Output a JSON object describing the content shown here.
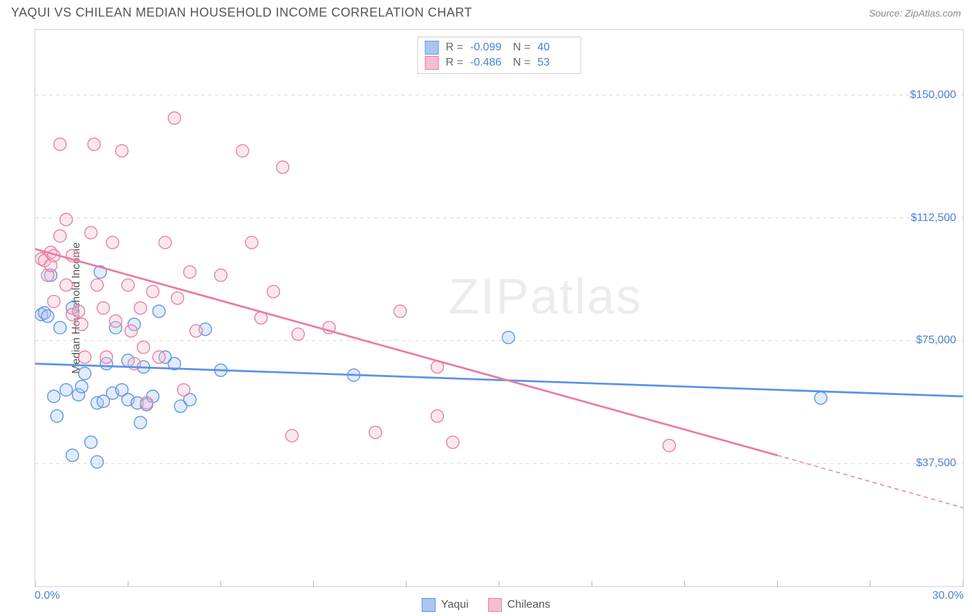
{
  "header": {
    "title": "YAQUI VS CHILEAN MEDIAN HOUSEHOLD INCOME CORRELATION CHART",
    "source": "Source: ZipAtlas.com"
  },
  "chart": {
    "type": "scatter",
    "y_label": "Median Household Income",
    "x_range": [
      0,
      30
    ],
    "y_range": [
      0,
      170000
    ],
    "x_start_label": "0.0%",
    "x_end_label": "30.0%",
    "x_ticks": [
      0,
      3,
      6,
      9,
      12,
      15,
      18,
      21,
      24,
      27,
      30
    ],
    "y_ticks": [
      {
        "value": 37500,
        "label": "$37,500"
      },
      {
        "value": 75000,
        "label": "$75,000"
      },
      {
        "value": 112500,
        "label": "$112,500"
      },
      {
        "value": 150000,
        "label": "$150,000"
      }
    ],
    "grid_color": "#d8d8d8",
    "background_color": "#ffffff",
    "marker_radius": 9,
    "marker_stroke_width": 1.4,
    "marker_fill_opacity": 0.35,
    "trend_line_width": 2.8,
    "watermark_text": "ZIPatlas",
    "series": [
      {
        "name": "Yaqui",
        "color_stroke": "#5b93e6",
        "color_fill": "#a8c6f0",
        "r_value": "-0.099",
        "n_value": "40",
        "trend": {
          "x1": 0,
          "y1": 68000,
          "x2": 30,
          "y2": 58000
        },
        "points": [
          [
            0.2,
            83000
          ],
          [
            0.3,
            83500
          ],
          [
            0.4,
            82500
          ],
          [
            0.5,
            95000
          ],
          [
            0.6,
            58000
          ],
          [
            0.7,
            52000
          ],
          [
            0.8,
            79000
          ],
          [
            1.0,
            60000
          ],
          [
            1.2,
            85000
          ],
          [
            1.2,
            40000
          ],
          [
            1.4,
            58500
          ],
          [
            1.5,
            61000
          ],
          [
            1.6,
            65000
          ],
          [
            1.8,
            44000
          ],
          [
            2.0,
            56000
          ],
          [
            2.0,
            38000
          ],
          [
            2.1,
            96000
          ],
          [
            2.2,
            56500
          ],
          [
            2.3,
            68000
          ],
          [
            2.5,
            59000
          ],
          [
            2.6,
            79000
          ],
          [
            2.8,
            60000
          ],
          [
            3.0,
            57000
          ],
          [
            3.2,
            80000
          ],
          [
            3.3,
            56000
          ],
          [
            3.4,
            50000
          ],
          [
            3.5,
            67000
          ],
          [
            3.6,
            55500
          ],
          [
            3.8,
            58000
          ],
          [
            4.0,
            84000
          ],
          [
            4.2,
            70000
          ],
          [
            4.5,
            68000
          ],
          [
            4.7,
            55000
          ],
          [
            5.0,
            57000
          ],
          [
            5.5,
            78500
          ],
          [
            6.0,
            66000
          ],
          [
            10.3,
            64500
          ],
          [
            15.3,
            76000
          ],
          [
            25.4,
            57500
          ],
          [
            3.0,
            69000
          ]
        ]
      },
      {
        "name": "Chileans",
        "color_stroke": "#e87da1",
        "color_fill": "#f4bdd0",
        "r_value": "-0.486",
        "n_value": "53",
        "trend": {
          "x1": 0,
          "y1": 103000,
          "x2": 24,
          "y2": 40000
        },
        "trend_dashed": {
          "x1": 24,
          "y1": 40000,
          "x2": 30,
          "y2": 24000
        },
        "points": [
          [
            0.2,
            100000
          ],
          [
            0.3,
            99500
          ],
          [
            0.4,
            95000
          ],
          [
            0.5,
            98000
          ],
          [
            0.5,
            102000
          ],
          [
            0.6,
            101000
          ],
          [
            0.6,
            87000
          ],
          [
            0.8,
            135000
          ],
          [
            0.8,
            107000
          ],
          [
            1.0,
            112000
          ],
          [
            1.0,
            92000
          ],
          [
            1.2,
            101000
          ],
          [
            1.2,
            83000
          ],
          [
            1.4,
            84000
          ],
          [
            1.5,
            80000
          ],
          [
            1.6,
            70000
          ],
          [
            1.8,
            108000
          ],
          [
            1.9,
            135000
          ],
          [
            2.0,
            92000
          ],
          [
            2.2,
            85000
          ],
          [
            2.3,
            70000
          ],
          [
            2.5,
            105000
          ],
          [
            2.6,
            81000
          ],
          [
            2.8,
            133000
          ],
          [
            3.0,
            92000
          ],
          [
            3.1,
            78000
          ],
          [
            3.2,
            68000
          ],
          [
            3.4,
            85000
          ],
          [
            3.5,
            73000
          ],
          [
            3.6,
            56000
          ],
          [
            3.8,
            90000
          ],
          [
            4.0,
            70000
          ],
          [
            4.2,
            105000
          ],
          [
            4.5,
            143000
          ],
          [
            4.6,
            88000
          ],
          [
            4.8,
            60000
          ],
          [
            5.2,
            78000
          ],
          [
            5.0,
            96000
          ],
          [
            6.0,
            95000
          ],
          [
            6.7,
            133000
          ],
          [
            7.0,
            105000
          ],
          [
            7.3,
            82000
          ],
          [
            7.7,
            90000
          ],
          [
            8.0,
            128000
          ],
          [
            8.3,
            46000
          ],
          [
            8.5,
            77000
          ],
          [
            9.5,
            79000
          ],
          [
            11.0,
            47000
          ],
          [
            11.8,
            84000
          ],
          [
            13.0,
            52000
          ],
          [
            13.0,
            67000
          ],
          [
            13.5,
            44000
          ],
          [
            20.5,
            43000
          ]
        ]
      }
    ],
    "legend_bottom": [
      {
        "label": "Yaqui",
        "fill": "#a8c6f0",
        "stroke": "#5b93e6"
      },
      {
        "label": "Chileans",
        "fill": "#f4bdd0",
        "stroke": "#e87da1"
      }
    ]
  }
}
